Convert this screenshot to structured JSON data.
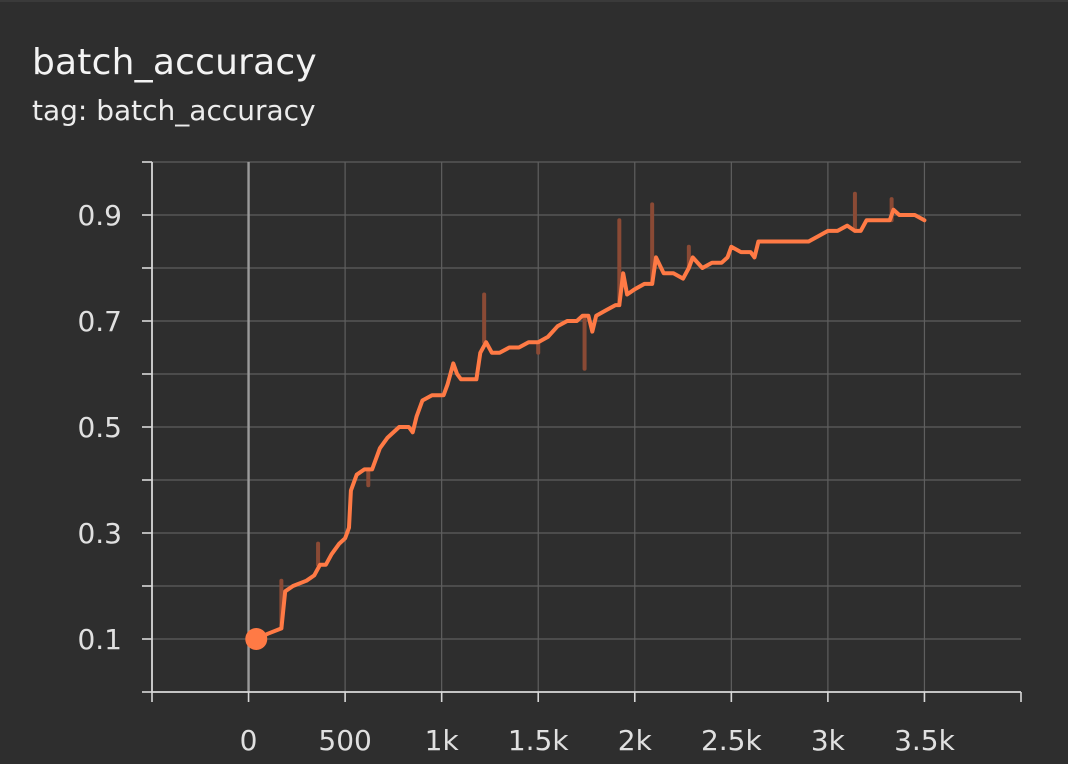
{
  "panel": {
    "title": "batch_accuracy",
    "tag_label": "tag: batch_accuracy"
  },
  "colors": {
    "background": "#2e2e2e",
    "grid": "#5f5f5f",
    "axis": "#d8d8d8",
    "zero_line": "#9a9a9a",
    "series_smoothed": "#ff7a45",
    "series_raw": "#8a4a35",
    "text": "#e0e0e0"
  },
  "chart_data": {
    "type": "line",
    "title": "batch_accuracy",
    "subtitle": "tag: batch_accuracy",
    "xlabel": "",
    "ylabel": "",
    "xlim": [
      -500,
      4000
    ],
    "ylim": [
      0,
      1.0
    ],
    "x_ticks": [
      0,
      500,
      1000,
      1500,
      2000,
      2500,
      3000,
      3500
    ],
    "x_tick_labels": [
      "0",
      "500",
      "1k",
      "1.5k",
      "2k",
      "2.5k",
      "3k",
      "3.5k"
    ],
    "y_ticks": [
      0.1,
      0.3,
      0.5,
      0.7,
      0.9
    ],
    "y_tick_labels": [
      "0.1",
      "0.3",
      "0.5",
      "0.7",
      "0.9"
    ],
    "grid": true,
    "series": [
      {
        "smoothed": true,
        "x": [
          40,
          100,
          170,
          190,
          230,
          300,
          340,
          370,
          400,
          430,
          470,
          500,
          520,
          530,
          560,
          600,
          640,
          660,
          680,
          720,
          780,
          830,
          850,
          870,
          900,
          950,
          1010,
          1030,
          1060,
          1080,
          1100,
          1150,
          1180,
          1200,
          1230,
          1260,
          1300,
          1350,
          1400,
          1450,
          1500,
          1550,
          1600,
          1650,
          1700,
          1730,
          1760,
          1780,
          1800,
          1850,
          1900,
          1920,
          1940,
          1960,
          2000,
          2050,
          2090,
          2110,
          2150,
          2200,
          2250,
          2280,
          2300,
          2350,
          2400,
          2450,
          2480,
          2500,
          2550,
          2600,
          2620,
          2640,
          2700,
          2750,
          2800,
          2850,
          2900,
          2950,
          3000,
          3050,
          3100,
          3140,
          3170,
          3200,
          3250,
          3300,
          3320,
          3340,
          3370,
          3400,
          3450,
          3500
        ],
        "values": [
          0.1,
          0.11,
          0.12,
          0.19,
          0.2,
          0.21,
          0.22,
          0.24,
          0.24,
          0.26,
          0.28,
          0.29,
          0.31,
          0.38,
          0.41,
          0.42,
          0.42,
          0.44,
          0.46,
          0.48,
          0.5,
          0.5,
          0.49,
          0.52,
          0.55,
          0.56,
          0.56,
          0.58,
          0.62,
          0.6,
          0.59,
          0.59,
          0.59,
          0.64,
          0.66,
          0.64,
          0.64,
          0.65,
          0.65,
          0.66,
          0.66,
          0.67,
          0.69,
          0.7,
          0.7,
          0.71,
          0.71,
          0.68,
          0.71,
          0.72,
          0.73,
          0.73,
          0.79,
          0.75,
          0.76,
          0.77,
          0.77,
          0.82,
          0.79,
          0.79,
          0.78,
          0.8,
          0.82,
          0.8,
          0.81,
          0.81,
          0.82,
          0.84,
          0.83,
          0.83,
          0.82,
          0.85,
          0.85,
          0.85,
          0.85,
          0.85,
          0.85,
          0.86,
          0.87,
          0.87,
          0.88,
          0.87,
          0.87,
          0.89,
          0.89,
          0.89,
          0.89,
          0.91,
          0.9,
          0.9,
          0.9,
          0.89
        ]
      },
      {
        "smoothed": false,
        "x": [
          170,
          360,
          620,
          1220,
          1500,
          1740,
          1920,
          2090,
          2280,
          3140,
          3330
        ],
        "values": [
          0.21,
          0.28,
          0.39,
          0.75,
          0.64,
          0.61,
          0.89,
          0.92,
          0.84,
          0.94,
          0.93
        ]
      }
    ]
  }
}
